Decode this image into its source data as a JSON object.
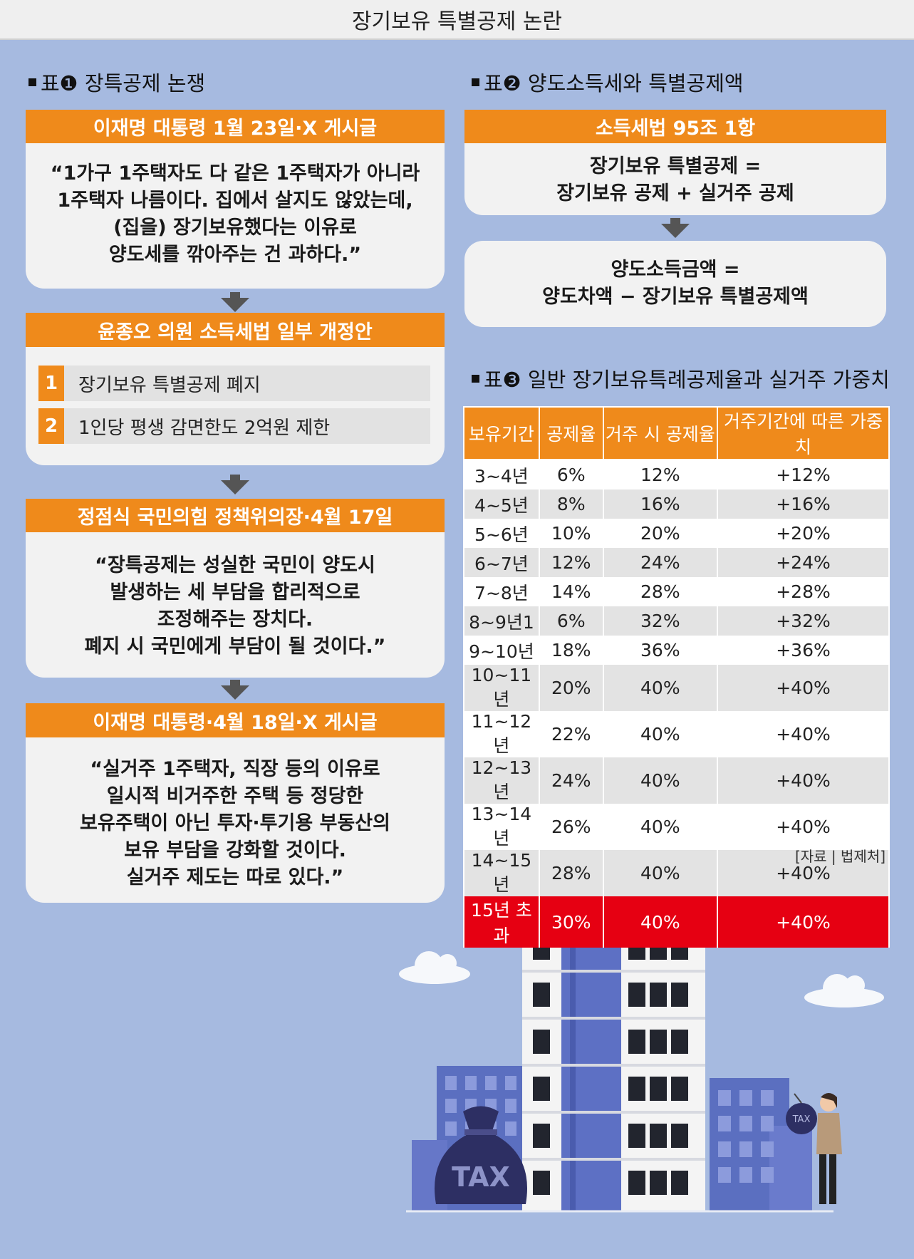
{
  "header": {
    "title": "장기보유 특별공제 논란"
  },
  "section1": {
    "label": "표❶ 장특공제 논쟁",
    "boxes": [
      {
        "title": "이재명 대통령 1월 23일·X 게시글",
        "lines": [
          "“1가구 1주택자도 다 같은 1주택자가 아니라",
          "1주택자 나름이다. 집에서 살지도 않았는데,",
          "(집을) 장기보유했다는 이유로",
          "양도세를 깎아주는 건 과하다.”"
        ]
      },
      {
        "title": "윤종오 의원 소득세법 일부 개정안",
        "items": [
          {
            "num": "1",
            "text": "장기보유 특별공제 폐지"
          },
          {
            "num": "2",
            "text": "1인당 평생 감면한도 2억원 제한"
          }
        ]
      },
      {
        "title": "정점식 국민의힘 정책위의장·4월 17일",
        "lines": [
          "“장특공제는 성실한 국민이 양도시",
          "발생하는 세 부담을 합리적으로",
          "조정해주는 장치다.",
          "폐지 시 국민에게 부담이 될 것이다.”"
        ]
      },
      {
        "title": "이재명 대통령·4월 18일·X 게시글",
        "lines": [
          "“실거주 1주택자, 직장 등의 이유로",
          "일시적 비거주한 주택 등 정당한",
          "보유주택이 아닌 투자·투기용 부동산의",
          "보유 부담을 강화할 것이다.",
          "실거주 제도는 따로 있다.”"
        ]
      }
    ]
  },
  "section2": {
    "label": "표❷ 양도소득세와 특별공제액",
    "title": "소득세법 95조 1항",
    "formula1": [
      "장기보유 특별공제 =",
      "장기보유 공제 + 실거주 공제"
    ],
    "formula2": [
      "양도소득금액 =",
      "양도차액 − 장기보유 특별공제액"
    ]
  },
  "section3": {
    "label": "표❸ 일반 장기보유특례공제율과 실거주 가중치",
    "table": {
      "header": [
        "보유기간",
        "공제율",
        "거주 시 공제율",
        "거주기간에 따른 가중치"
      ],
      "rows": [
        [
          "3~4년",
          "6%",
          "12%",
          "+12%"
        ],
        [
          "4~5년",
          "8%",
          "16%",
          "+16%"
        ],
        [
          "5~6년",
          "10%",
          "20%",
          "+20%"
        ],
        [
          "6~7년",
          "12%",
          "24%",
          "+24%"
        ],
        [
          "7~8년",
          "14%",
          "28%",
          "+28%"
        ],
        [
          "8~9년1",
          "6%",
          "32%",
          "+32%"
        ],
        [
          "9~10년",
          "18%",
          "36%",
          "+36%"
        ],
        [
          "10~11년",
          "20%",
          "40%",
          "+40%"
        ],
        [
          "11~12년",
          "22%",
          "40%",
          "+40%"
        ],
        [
          "12~13년",
          "24%",
          "40%",
          "+40%"
        ],
        [
          "13~14년",
          "26%",
          "40%",
          "+40%"
        ],
        [
          "14~15년",
          "28%",
          "40%",
          "+40%"
        ],
        [
          "15년 초과",
          "30%",
          "40%",
          "+40%"
        ]
      ]
    },
    "source": "[자료 | 법제처]"
  },
  "illustration": {
    "bag_label": "TAX",
    "bomb_label": "TAX"
  }
}
